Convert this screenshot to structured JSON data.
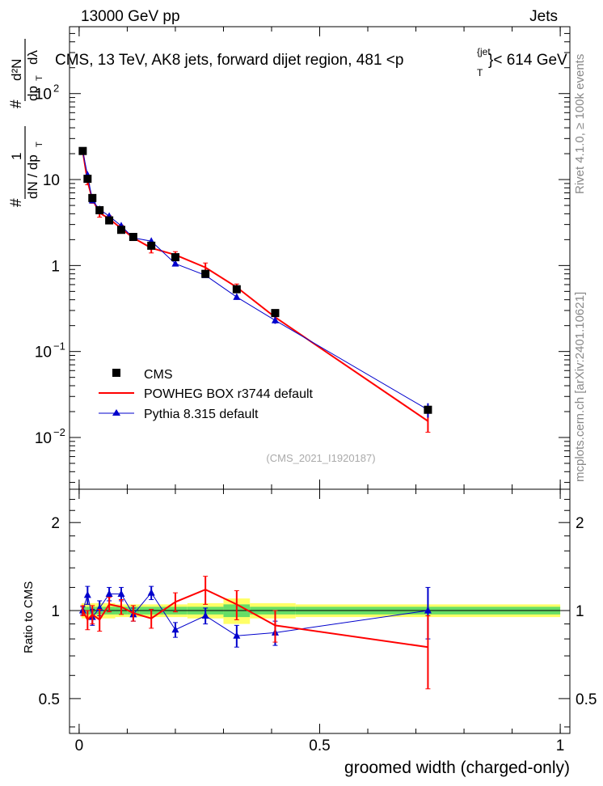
{
  "header": {
    "left": "13000 GeV pp",
    "right": "Jets"
  },
  "side_text": {
    "rivet": "Rivet 4.1.0, ≥ 100k events",
    "mcplots": "mcplots.cern.ch [arXiv:2401.10621]"
  },
  "watermark": "(CMS_2021_I1920187)",
  "title_parts": {
    "main": "CMS, 13 TeV, AK8 jets, forward dijet region, 481 <p",
    "sup": "{jet",
    "sub": "T",
    "tail": "}< 614 GeV"
  },
  "ylabel_top": {
    "frac1_num": "1",
    "frac1_den": "dN / dp",
    "frac1_den_sub": "T",
    "frac2_num": "d²N",
    "frac2_den": "dp",
    "frac2_den_sub": "T",
    "frac2_den_tail": "dλ",
    "hash_num": "#",
    "hash_den": "#"
  },
  "ylabel_bottom": "Ratio to CMS",
  "colors": {
    "cms": "#000000",
    "powheg": "#ff0000",
    "pythia": "#0000cc",
    "band_outer": "#ffff66",
    "band_inner": "#66dd66"
  },
  "chart_data": {
    "type": "line",
    "xlabel": "groomed width (charged-only)",
    "xlim": [
      -0.02,
      1.02
    ],
    "x_ticks": [
      {
        "v": 0,
        "label": "0"
      },
      {
        "v": 0.5,
        "label": "0.5"
      },
      {
        "v": 1,
        "label": "1"
      }
    ],
    "main": {
      "yscale": "log",
      "ylim": [
        0.0025,
        600
      ],
      "y_ticks": [
        {
          "v": 0.01,
          "base": "10",
          "exp": "−2"
        },
        {
          "v": 0.1,
          "base": "10",
          "exp": "−1"
        },
        {
          "v": 1,
          "base": "1",
          "exp": ""
        },
        {
          "v": 10,
          "base": "10",
          "exp": ""
        },
        {
          "v": 100,
          "base": "10",
          "exp": "2"
        }
      ],
      "series": [
        {
          "name": "CMS",
          "marker": "square",
          "x": [
            0.0075,
            0.0175,
            0.0275,
            0.0425,
            0.0625,
            0.0875,
            0.1125,
            0.15,
            0.2,
            0.2625,
            0.3275,
            0.4075,
            0.725
          ],
          "y": [
            21.5,
            10.2,
            6.1,
            4.4,
            3.35,
            2.6,
            2.15,
            1.7,
            1.25,
            0.8,
            0.53,
            0.28,
            0.021
          ],
          "yerr": [
            0.8,
            0.4,
            0.25,
            0.2,
            0.15,
            0.12,
            0.1,
            0.08,
            0.06,
            0.04,
            0.03,
            0.015,
            0.002
          ]
        },
        {
          "name": "POWHEG BOX r3744 default",
          "marker": "line",
          "x": [
            0.0075,
            0.0175,
            0.0275,
            0.0425,
            0.0625,
            0.0875,
            0.1125,
            0.15,
            0.2,
            0.2625,
            0.3275,
            0.4075,
            0.725
          ],
          "y": [
            21.5,
            9.5,
            5.9,
            4.1,
            3.5,
            2.7,
            2.1,
            1.6,
            1.33,
            0.95,
            0.56,
            0.25,
            0.0155
          ],
          "yerr": [
            1.0,
            0.8,
            0.6,
            0.45,
            0.3,
            0.25,
            0.15,
            0.2,
            0.12,
            0.12,
            0.05,
            0.03,
            0.004
          ]
        },
        {
          "name": "Pythia 8.315 default",
          "marker": "triangle",
          "x": [
            0.0075,
            0.0175,
            0.0275,
            0.0425,
            0.0625,
            0.0875,
            0.1125,
            0.15,
            0.2,
            0.2625,
            0.3275,
            0.4075,
            0.725
          ],
          "y": [
            21.2,
            11.3,
            5.7,
            4.5,
            3.75,
            2.9,
            2.1,
            1.92,
            1.05,
            0.77,
            0.43,
            0.23,
            0.021
          ],
          "yerr": [
            0.5,
            0.6,
            0.4,
            0.3,
            0.2,
            0.15,
            0.1,
            0.1,
            0.05,
            0.04,
            0.03,
            0.02,
            0.004
          ]
        }
      ]
    },
    "ratio": {
      "ylabel": "Ratio to CMS",
      "yscale": "log",
      "ylim": [
        0.38,
        2.6
      ],
      "y_ticks": [
        {
          "v": 0.5,
          "label": "0.5"
        },
        {
          "v": 1,
          "label": "1"
        },
        {
          "v": 2,
          "label": "2"
        }
      ],
      "bin_edges": [
        0.005,
        0.015,
        0.025,
        0.035,
        0.05,
        0.075,
        0.1,
        0.125,
        0.175,
        0.225,
        0.3,
        0.355,
        0.45,
        1.0
      ],
      "band_outer": [
        0.06,
        0.06,
        0.06,
        0.06,
        0.06,
        0.05,
        0.05,
        0.05,
        0.05,
        0.06,
        0.1,
        0.06,
        0.05
      ],
      "band_inner": [
        0.03,
        0.03,
        0.03,
        0.03,
        0.03,
        0.03,
        0.03,
        0.03,
        0.03,
        0.03,
        0.05,
        0.03,
        0.03
      ],
      "series": [
        {
          "name": "POWHEG BOX r3744 default",
          "x": [
            0.0075,
            0.0175,
            0.0275,
            0.0425,
            0.0625,
            0.0875,
            0.1125,
            0.15,
            0.2,
            0.2625,
            0.3275,
            0.4075,
            0.725
          ],
          "y": [
            1.0,
            0.93,
            0.97,
            0.93,
            1.05,
            1.03,
            0.98,
            0.94,
            1.07,
            1.18,
            1.05,
            0.89,
            0.75
          ],
          "yerr": [
            0.04,
            0.07,
            0.07,
            0.08,
            0.06,
            0.06,
            0.06,
            0.07,
            0.08,
            0.13,
            0.12,
            0.11,
            0.21
          ]
        },
        {
          "name": "Pythia 8.315 default",
          "x": [
            0.0075,
            0.0175,
            0.0275,
            0.0425,
            0.0625,
            0.0875,
            0.1125,
            0.15,
            0.2,
            0.2625,
            0.3275,
            0.4075,
            0.725
          ],
          "y": [
            1.0,
            1.13,
            0.95,
            1.02,
            1.14,
            1.14,
            0.97,
            1.15,
            0.86,
            0.96,
            0.82,
            0.84,
            1.0
          ],
          "yerr": [
            0.03,
            0.08,
            0.06,
            0.06,
            0.06,
            0.06,
            0.05,
            0.06,
            0.05,
            0.06,
            0.07,
            0.08,
            0.2
          ]
        }
      ]
    },
    "legend": {
      "placement": "lower-left",
      "entries": [
        {
          "label": "CMS",
          "marker": "square"
        },
        {
          "label": "POWHEG BOX r3744 default",
          "marker": "line"
        },
        {
          "label": "Pythia 8.315 default",
          "marker": "triangle"
        }
      ]
    }
  }
}
